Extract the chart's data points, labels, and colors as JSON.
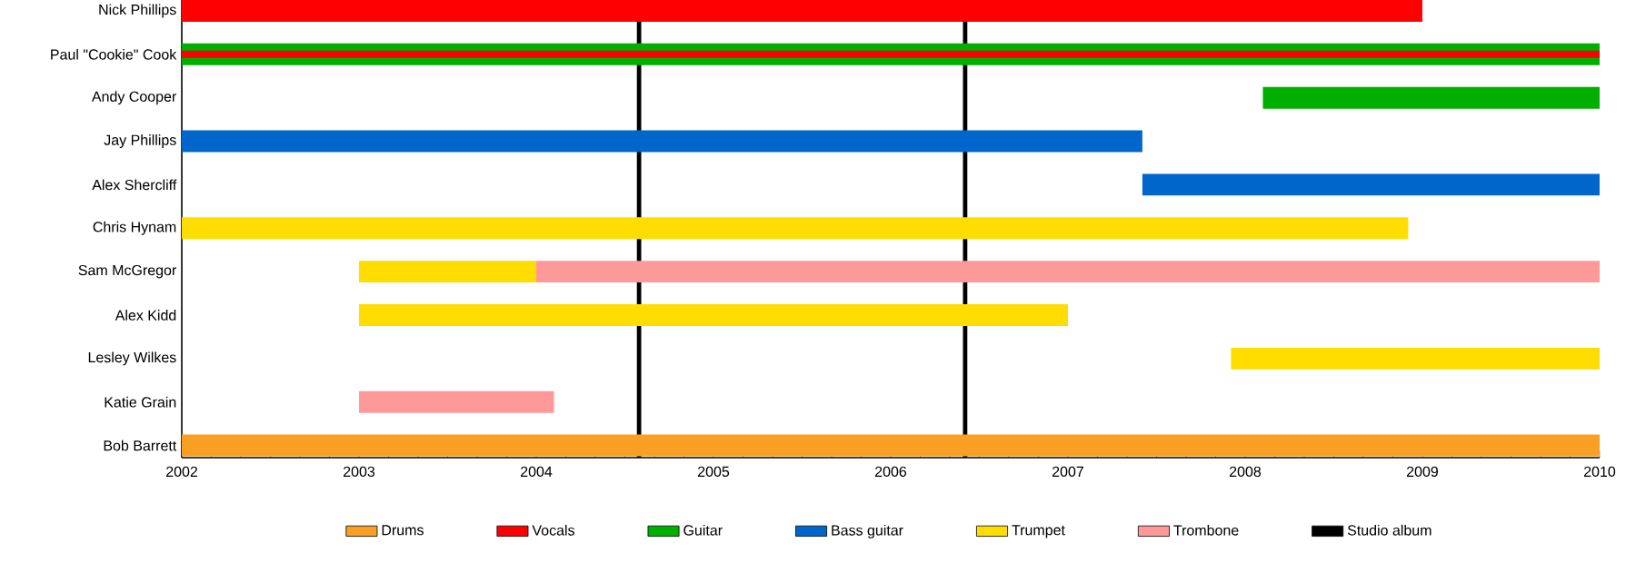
{
  "chart_data": {
    "type": "bar",
    "orientation": "horizontal",
    "legend": "bottom",
    "categories": [
      "Nick Phillips",
      "Paul \"Cookie\" Cook",
      "Andy Cooper",
      "Jay Phillips",
      "Alex Shercliff",
      "Chris Hynam",
      "Sam McGregor",
      "Alex Kidd",
      "Lesley Wilkes",
      "Katie Grain",
      "Bob Barrett"
    ],
    "xlim": [
      2002,
      2010
    ],
    "xticks": [
      2002,
      2003,
      2004,
      2005,
      2006,
      2007,
      2008,
      2009,
      2010
    ],
    "series": [
      {
        "name": "Drums",
        "color": "#f9a024",
        "base": [
          null,
          null,
          null,
          null,
          null,
          null,
          null,
          null,
          null,
          null,
          2002
        ],
        "values": [
          null,
          null,
          null,
          null,
          null,
          null,
          null,
          null,
          null,
          null,
          8
        ]
      },
      {
        "name": "Vocals",
        "color": "#ff0000",
        "base": [
          2002,
          2002,
          null,
          null,
          null,
          null,
          null,
          null,
          null,
          null,
          null
        ],
        "values": [
          7,
          8,
          null,
          null,
          null,
          null,
          null,
          null,
          null,
          null,
          null
        ]
      },
      {
        "name": "Guitar",
        "color": "#00b000",
        "base": [
          null,
          2002,
          2008.1,
          null,
          null,
          null,
          null,
          null,
          null,
          null,
          null
        ],
        "values": [
          null,
          8,
          1.9,
          null,
          null,
          null,
          null,
          null,
          null,
          null,
          null
        ]
      },
      {
        "name": "Bass guitar",
        "color": "#0066cc",
        "base": [
          null,
          null,
          null,
          2002,
          2007.42,
          null,
          null,
          null,
          null,
          null,
          null
        ],
        "values": [
          null,
          null,
          null,
          5.42,
          2.58,
          null,
          null,
          null,
          null,
          null,
          null
        ]
      },
      {
        "name": "Trumpet",
        "color": "#ffdd00",
        "base": [
          null,
          null,
          null,
          null,
          null,
          2002,
          2003,
          2003,
          2007.92,
          null,
          null
        ],
        "values": [
          null,
          null,
          null,
          null,
          null,
          6.92,
          1,
          4,
          2.08,
          null,
          null
        ]
      },
      {
        "name": "Trombone",
        "color": "#ff9999",
        "base": [
          null,
          null,
          null,
          null,
          null,
          null,
          2004,
          null,
          null,
          2003,
          null
        ],
        "values": [
          null,
          null,
          null,
          null,
          null,
          null,
          6,
          null,
          null,
          1.1,
          null
        ]
      }
    ],
    "ref_lines": [
      {
        "axis": "x",
        "value": 2004.58,
        "label": "Studio album",
        "color": "#000000"
      },
      {
        "axis": "x",
        "value": 2006.42,
        "color": "#000000"
      }
    ]
  }
}
